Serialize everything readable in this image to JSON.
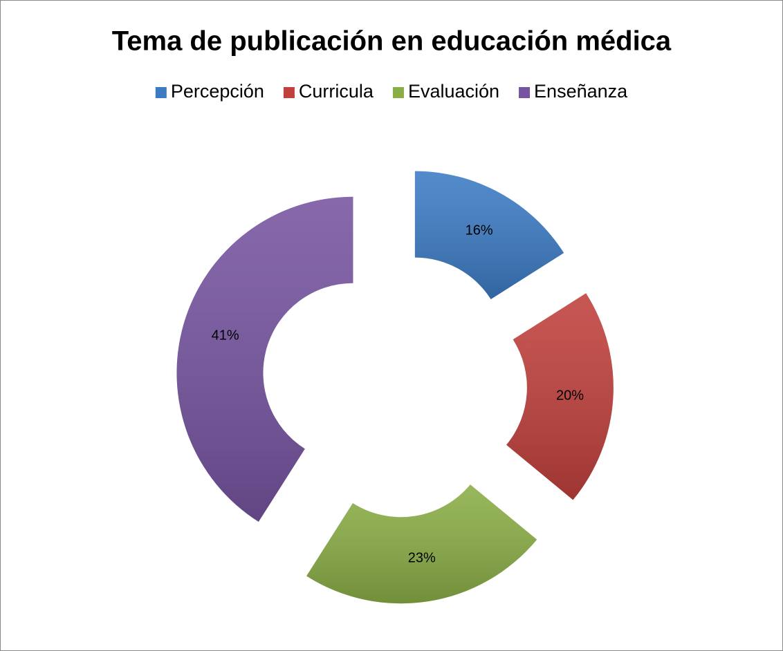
{
  "chart_data": {
    "type": "doughnut",
    "title": "Tema de publicación en educación médica",
    "categories": [
      "Percepción",
      "Curricula",
      "Evaluación",
      "Enseñanza"
    ],
    "values": [
      16,
      20,
      23,
      41
    ],
    "value_labels": [
      "16%",
      "20%",
      "23%",
      "41%"
    ],
    "colors": [
      "#3c7bc4",
      "#c0403c",
      "#8aae46",
      "#7654a0"
    ],
    "legend": "top",
    "exploded": true
  }
}
